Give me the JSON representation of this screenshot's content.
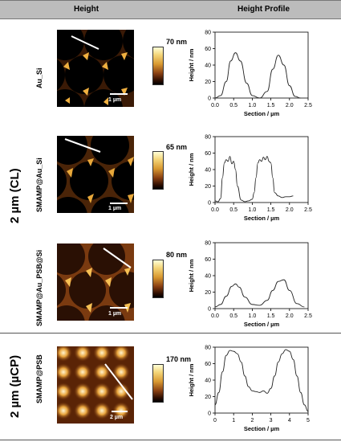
{
  "headers": {
    "height": "Height",
    "profile": "Height Profile"
  },
  "groups": [
    {
      "label": "2 µm (CL)"
    },
    {
      "label": "2 µm (µCP)"
    }
  ],
  "rows": [
    {
      "label": "Au_Si",
      "colorbar_label": "70 nm",
      "scale_bar": "1 µm"
    },
    {
      "label": "SMAMP@Au_Si",
      "colorbar_label": "65 nm",
      "scale_bar": "1 µm"
    },
    {
      "label": "SMAMP@Au_PSB@Si",
      "colorbar_label": "80 nm",
      "scale_bar": "1 µm"
    },
    {
      "label": "SMAMP@PSB",
      "colorbar_label": "170 nm",
      "scale_bar": "2 µm"
    }
  ],
  "chart_data": [
    {
      "type": "line",
      "xlabel": "Section / µm",
      "ylabel": "Height / nm",
      "xlim": [
        0,
        2.5
      ],
      "ylim": [
        0,
        80
      ],
      "xticks": [
        "0.0",
        "0.5",
        "1.0",
        "1.5",
        "2.0",
        "2.5"
      ],
      "yticks": [
        "0",
        "20",
        "40",
        "60",
        "80"
      ],
      "series": [
        {
          "x": [
            0.0,
            0.15,
            0.3,
            0.42,
            0.55,
            0.68,
            0.85,
            1.0,
            1.2,
            1.4,
            1.55,
            1.7,
            1.85,
            2.0,
            2.15,
            2.3
          ],
          "y": [
            0,
            3,
            20,
            45,
            55,
            45,
            18,
            3,
            0,
            8,
            35,
            52,
            40,
            15,
            2,
            0
          ]
        }
      ]
    },
    {
      "type": "line",
      "xlabel": "Section / µm",
      "ylabel": "Height / nm",
      "xlim": [
        0,
        2.5
      ],
      "ylim": [
        0,
        80
      ],
      "xticks": [
        "0.0",
        "0.5",
        "1.0",
        "1.5",
        "2.0",
        "2.5"
      ],
      "yticks": [
        "0",
        "20",
        "40",
        "60",
        "80"
      ],
      "series": [
        {
          "x": [
            0.0,
            0.08,
            0.15,
            0.2,
            0.25,
            0.3,
            0.35,
            0.4,
            0.45,
            0.5,
            0.55,
            0.6,
            0.7,
            0.8,
            0.9,
            1.0,
            1.05,
            1.1,
            1.15,
            1.2,
            1.25,
            1.3,
            1.35,
            1.4,
            1.45,
            1.5,
            1.55,
            1.6,
            1.7,
            1.8,
            1.9,
            2.0,
            2.1
          ],
          "y": [
            2,
            1,
            5,
            30,
            48,
            52,
            50,
            56,
            47,
            50,
            40,
            20,
            3,
            1,
            2,
            4,
            12,
            30,
            48,
            52,
            50,
            55,
            52,
            56,
            50,
            48,
            30,
            12,
            8,
            6,
            7,
            7,
            8
          ]
        }
      ]
    },
    {
      "type": "line",
      "xlabel": "Section / µm",
      "ylabel": "Height / nm",
      "xlim": [
        0,
        2.5
      ],
      "ylim": [
        0,
        80
      ],
      "xticks": [
        "0.0",
        "0.5",
        "1.0",
        "1.5",
        "2.0",
        "2.5"
      ],
      "yticks": [
        "0",
        "20",
        "40",
        "60",
        "80"
      ],
      "series": [
        {
          "x": [
            0.0,
            0.15,
            0.3,
            0.45,
            0.55,
            0.65,
            0.8,
            1.0,
            1.2,
            1.4,
            1.55,
            1.7,
            1.85,
            2.0,
            2.2,
            2.4
          ],
          "y": [
            2,
            5,
            15,
            27,
            30,
            26,
            14,
            5,
            4,
            10,
            22,
            33,
            35,
            22,
            6,
            2
          ]
        }
      ]
    },
    {
      "type": "line",
      "xlabel": "Section / µm",
      "ylabel": "Height / nm",
      "xlim": [
        0,
        5
      ],
      "ylim": [
        0,
        80
      ],
      "xticks": [
        "0",
        "1",
        "2",
        "3",
        "4",
        "5"
      ],
      "yticks": [
        "0",
        "20",
        "40",
        "60",
        "80"
      ],
      "series": [
        {
          "x": [
            0.0,
            0.2,
            0.4,
            0.6,
            0.8,
            1.0,
            1.2,
            1.4,
            1.6,
            1.8,
            2.0,
            2.2,
            2.4,
            2.6,
            2.8,
            3.0,
            3.2,
            3.4,
            3.6,
            3.8,
            4.0,
            4.2,
            4.4,
            4.6,
            4.8,
            5.0
          ],
          "y": [
            10,
            25,
            50,
            70,
            76,
            75,
            72,
            62,
            45,
            32,
            27,
            26,
            25,
            27,
            24,
            30,
            45,
            62,
            72,
            77,
            75,
            65,
            45,
            25,
            10,
            2
          ]
        }
      ]
    }
  ]
}
